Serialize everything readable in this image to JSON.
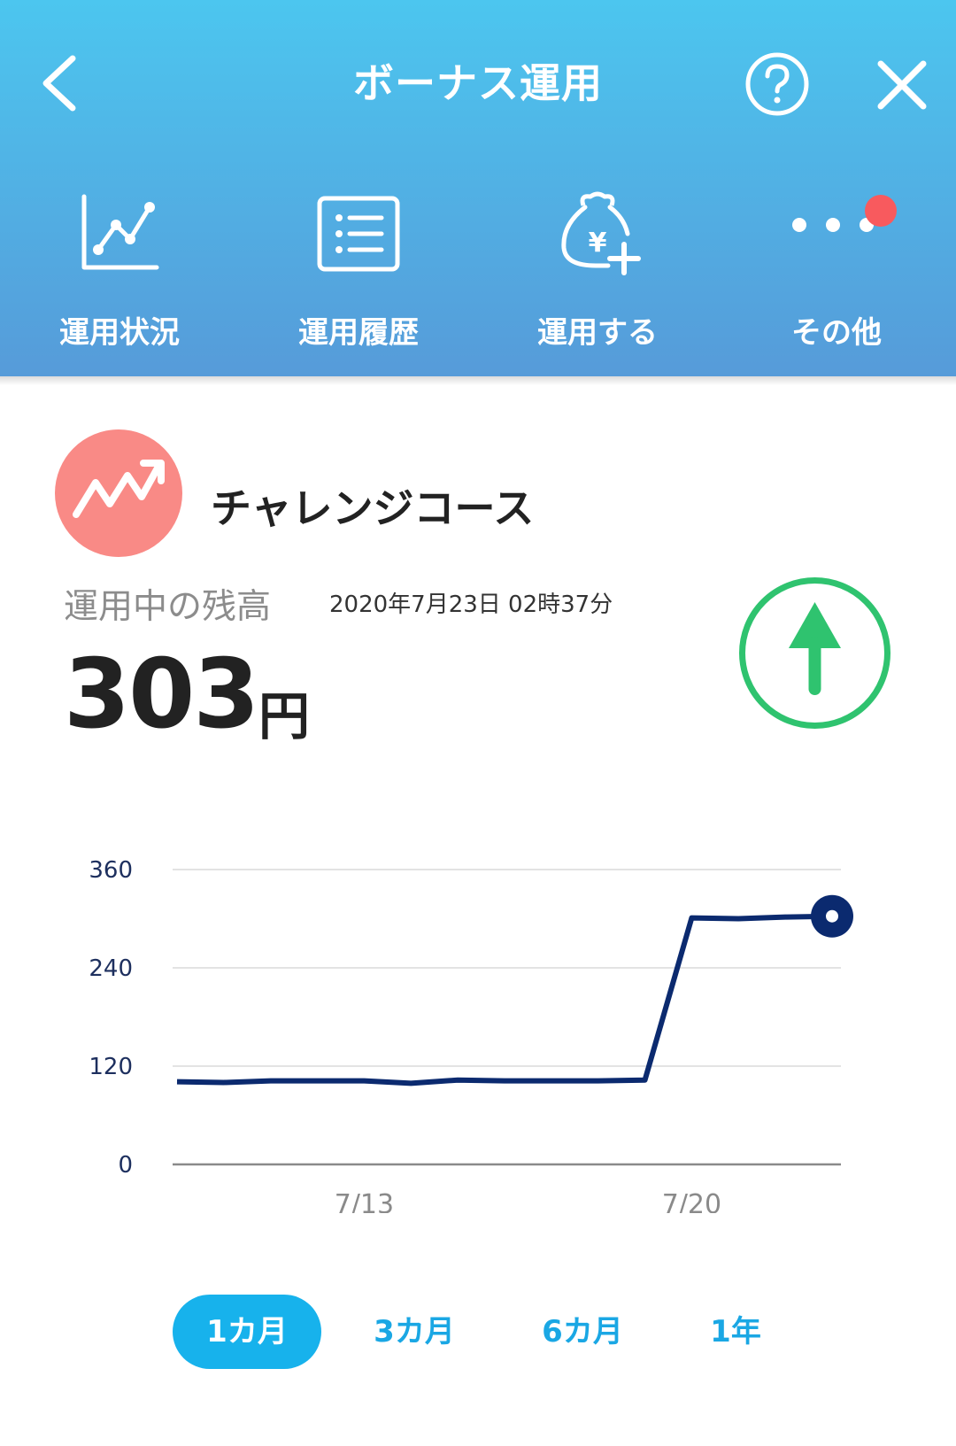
{
  "header": {
    "title": "ボーナス運用",
    "back_icon": "chevron-left-icon",
    "help_icon": "help-circle-icon",
    "close_icon": "close-icon"
  },
  "nav": {
    "items": [
      {
        "label": "運用状況",
        "icon": "line-chart-icon"
      },
      {
        "label": "運用履歴",
        "icon": "list-icon"
      },
      {
        "label": "運用する",
        "icon": "money-bag-add-icon"
      },
      {
        "label": "その他",
        "icon": "more-icon",
        "has_badge": true
      }
    ],
    "badge_color": "#f85a5e"
  },
  "course": {
    "name": "チャレンジコース",
    "logo_icon": "trend-up-icon",
    "logo_color": "#f98a86"
  },
  "balance": {
    "label": "運用中の残高",
    "timestamp": "2020年7月23日 02時37分",
    "amount": "303",
    "unit": "円",
    "trend": "up",
    "trend_icon": "arrow-up-circle-icon",
    "trend_color": "#2fc36f"
  },
  "chart_data": {
    "type": "line",
    "title": "",
    "xlabel": "",
    "ylabel": "",
    "ylim": [
      0,
      360
    ],
    "y_ticks": [
      "0",
      "120",
      "240",
      "360"
    ],
    "x_ticks": [
      {
        "label": "7/13",
        "x": 4
      },
      {
        "label": "7/20",
        "x": 11
      }
    ],
    "x": [
      0,
      1,
      2,
      3,
      4,
      5,
      6,
      7,
      8,
      9,
      10,
      11,
      12,
      13,
      14
    ],
    "series": [
      {
        "values": [
          101,
          100,
          102,
          102,
          102,
          99,
          103,
          102,
          102,
          102,
          103,
          301,
          300,
          302,
          303
        ]
      }
    ],
    "line_color": "#0b2a6f",
    "grid": true
  },
  "periods": {
    "items": [
      "1カ月",
      "3カ月",
      "6カ月",
      "1年"
    ],
    "selected": "1カ月"
  }
}
